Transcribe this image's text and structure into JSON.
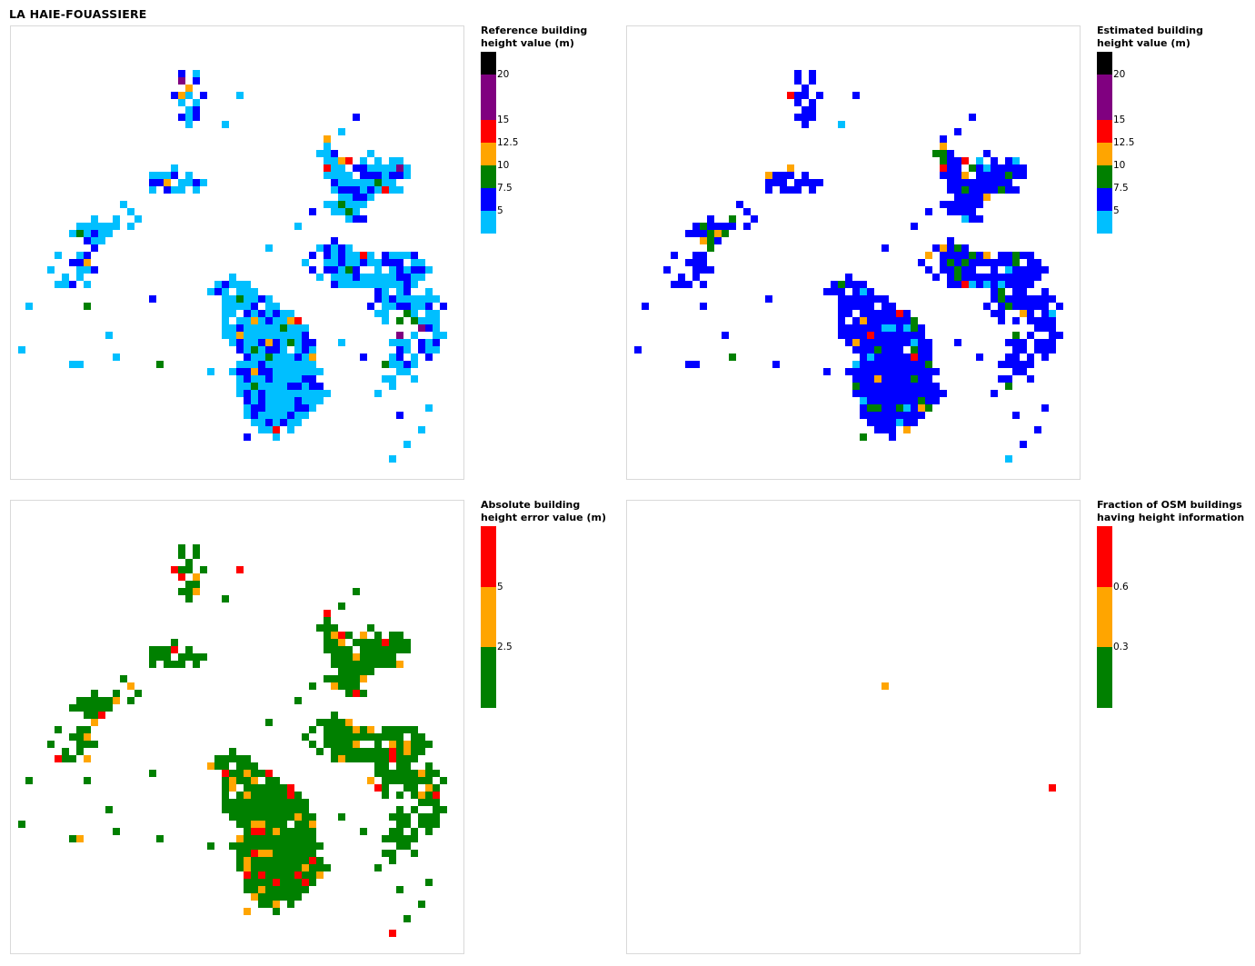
{
  "page_title": "LA HAIE-FOUASSIERE",
  "chart_data": [
    {
      "type": "heatmap",
      "legend_title": "Reference building\nheight value (m)",
      "color_scale": [
        {
          "from": 2.5,
          "to": 5,
          "color": "#00bfff"
        },
        {
          "from": 5,
          "to": 7.5,
          "color": "#0000ff"
        },
        {
          "from": 7.5,
          "to": 10,
          "color": "#008000"
        },
        {
          "from": 10,
          "to": 12.5,
          "color": "#ffa500"
        },
        {
          "from": 12.5,
          "to": 15,
          "color": "#ff0000"
        },
        {
          "from": 15,
          "to": 20,
          "color": "#800080"
        },
        {
          "from": 20,
          "to": 22.5,
          "color": "#000000"
        }
      ],
      "tick_labels": [
        "5",
        "7.5",
        "10",
        "12.5",
        "15",
        "20"
      ],
      "cell_summary": {
        "light_blue": "dominant",
        "blue": "secondary",
        "green": "few",
        "orange": "few",
        "red": "rare",
        "purple": "1 cell"
      }
    },
    {
      "type": "heatmap",
      "legend_title": "Estimated building\nheight value (m)",
      "color_scale": [
        {
          "from": 2.5,
          "to": 5,
          "color": "#00bfff"
        },
        {
          "from": 5,
          "to": 7.5,
          "color": "#0000ff"
        },
        {
          "from": 7.5,
          "to": 10,
          "color": "#008000"
        },
        {
          "from": 10,
          "to": 12.5,
          "color": "#ffa500"
        },
        {
          "from": 12.5,
          "to": 15,
          "color": "#ff0000"
        },
        {
          "from": 15,
          "to": 20,
          "color": "#800080"
        },
        {
          "from": 20,
          "to": 22.5,
          "color": "#000000"
        }
      ],
      "tick_labels": [
        "5",
        "7.5",
        "10",
        "12.5",
        "15",
        "20"
      ],
      "cell_summary": {
        "blue": "dominant",
        "green": "secondary",
        "light_blue": "few",
        "orange": "few",
        "red": "rare"
      }
    },
    {
      "type": "heatmap",
      "legend_title": "Absolute building\nheight error value (m)",
      "color_scale": [
        {
          "from": 0,
          "to": 2.5,
          "color": "#008000"
        },
        {
          "from": 2.5,
          "to": 5,
          "color": "#ffa500"
        },
        {
          "from": 5,
          "to": 7.5,
          "color": "#ff0000"
        }
      ],
      "tick_labels": [
        "2.5",
        "5"
      ],
      "cell_summary": {
        "green": "dominant",
        "orange": "secondary",
        "red": "few"
      }
    },
    {
      "type": "heatmap",
      "legend_title": "Fraction of OSM buildings\nhaving height information",
      "color_scale": [
        {
          "from": 0,
          "to": 0.3,
          "color": "#008000"
        },
        {
          "from": 0.3,
          "to": 0.6,
          "color": "#ffa500"
        },
        {
          "from": 0.6,
          "to": 0.9,
          "color": "#ff0000"
        }
      ],
      "tick_labels": [
        "0.3",
        "0.6"
      ],
      "cell_summary": {
        "orange": "1 cell",
        "red": "1 cell"
      }
    }
  ]
}
